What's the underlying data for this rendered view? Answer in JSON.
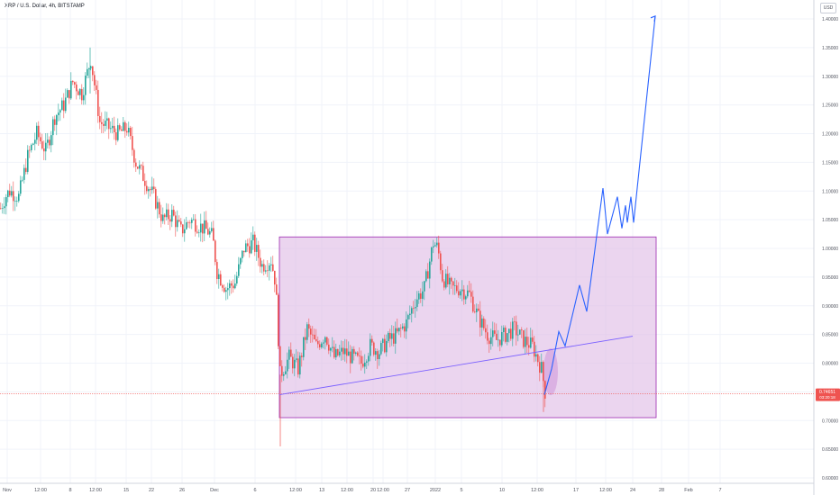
{
  "header": {
    "symbol_title": "XRP / U.S. Dollar, 4h, BITSTAMP",
    "currency_label": "USD"
  },
  "price_badge": {
    "price": "0.74651",
    "countdown": "03:20:18"
  },
  "colors": {
    "up": "#26a69a",
    "down": "#ef5350",
    "projection": "#2962ff",
    "trendline": "#7b61ff",
    "box_fill": "#e1bee7",
    "box_border": "#9c27b0"
  },
  "chart_data": {
    "type": "candlestick",
    "y_ticks": [
      "0.60000",
      "0.65000",
      "0.70000",
      "0.75000",
      "0.80000",
      "0.85000",
      "0.90000",
      "0.95000",
      "1.00000",
      "1.05000",
      "1.10000",
      "1.15000",
      "1.20000",
      "1.25000",
      "1.30000",
      "1.35000",
      "1.40000"
    ],
    "x_ticks": [
      "Nov",
      "12:00",
      "8",
      "12:00",
      "15",
      "22",
      "26",
      "Dec",
      "6",
      "12:00",
      "13",
      "12:00",
      "20",
      "12:00",
      "27",
      "2022",
      "5",
      "10",
      "12:00",
      "17",
      "12:00",
      "24",
      "28",
      "Feb",
      "7"
    ],
    "ohlc_path": [
      [
        0,
        1.07
      ],
      [
        5,
        1.09
      ],
      [
        10,
        1.1
      ],
      [
        20,
        1.09
      ],
      [
        30,
        1.16
      ],
      [
        40,
        1.2
      ],
      [
        50,
        1.17
      ],
      [
        60,
        1.23
      ],
      [
        70,
        1.25
      ],
      [
        80,
        1.29
      ],
      [
        90,
        1.27
      ],
      [
        100,
        1.33
      ],
      [
        110,
        1.22
      ],
      [
        120,
        1.21
      ],
      [
        130,
        1.2
      ],
      [
        140,
        1.21
      ],
      [
        150,
        1.15
      ],
      [
        160,
        1.12
      ],
      [
        170,
        1.09
      ],
      [
        180,
        1.05
      ],
      [
        190,
        1.06
      ],
      [
        200,
        1.03
      ],
      [
        210,
        1.05
      ],
      [
        220,
        1.04
      ],
      [
        230,
        1.03
      ],
      [
        235,
        1.02
      ],
      [
        240,
        0.96
      ],
      [
        250,
        0.93
      ],
      [
        260,
        0.94
      ],
      [
        270,
        1.0
      ],
      [
        280,
        1.01
      ],
      [
        290,
        0.97
      ],
      [
        300,
        0.98
      ],
      [
        305,
        0.94
      ],
      [
        310,
        0.78
      ],
      [
        320,
        0.81
      ],
      [
        330,
        0.79
      ],
      [
        340,
        0.86
      ],
      [
        350,
        0.83
      ],
      [
        360,
        0.85
      ],
      [
        370,
        0.81
      ],
      [
        380,
        0.82
      ],
      [
        390,
        0.81
      ],
      [
        400,
        0.8
      ],
      [
        410,
        0.83
      ],
      [
        420,
        0.82
      ],
      [
        430,
        0.84
      ],
      [
        440,
        0.85
      ],
      [
        450,
        0.87
      ],
      [
        460,
        0.91
      ],
      [
        470,
        0.93
      ],
      [
        480,
        1.01
      ],
      [
        485,
        1.0
      ],
      [
        490,
        0.95
      ],
      [
        500,
        0.93
      ],
      [
        510,
        0.93
      ],
      [
        520,
        0.92
      ],
      [
        530,
        0.88
      ],
      [
        540,
        0.85
      ],
      [
        550,
        0.84
      ],
      [
        560,
        0.85
      ],
      [
        570,
        0.86
      ],
      [
        580,
        0.84
      ],
      [
        590,
        0.83
      ],
      [
        600,
        0.79
      ],
      [
        604,
        0.75
      ]
    ],
    "range_box": {
      "top": 1.02,
      "bottom": 0.705,
      "from_x": 310,
      "to_x": 728
    },
    "trendline": [
      [
        310,
        0.745
      ],
      [
        702,
        0.847
      ]
    ],
    "projection": [
      [
        604,
        0.745
      ],
      [
        612,
        0.79
      ],
      [
        620,
        0.855
      ],
      [
        627,
        0.83
      ],
      [
        643,
        0.936
      ],
      [
        651,
        0.89
      ],
      [
        669,
        1.105
      ],
      [
        674,
        1.025
      ],
      [
        685,
        1.09
      ],
      [
        690,
        1.035
      ],
      [
        694,
        1.075
      ],
      [
        696,
        1.045
      ],
      [
        700,
        1.09
      ],
      [
        703,
        1.045
      ],
      [
        727,
        1.405
      ]
    ],
    "current_price": 0.7465,
    "last_price_line": 0.7465
  }
}
